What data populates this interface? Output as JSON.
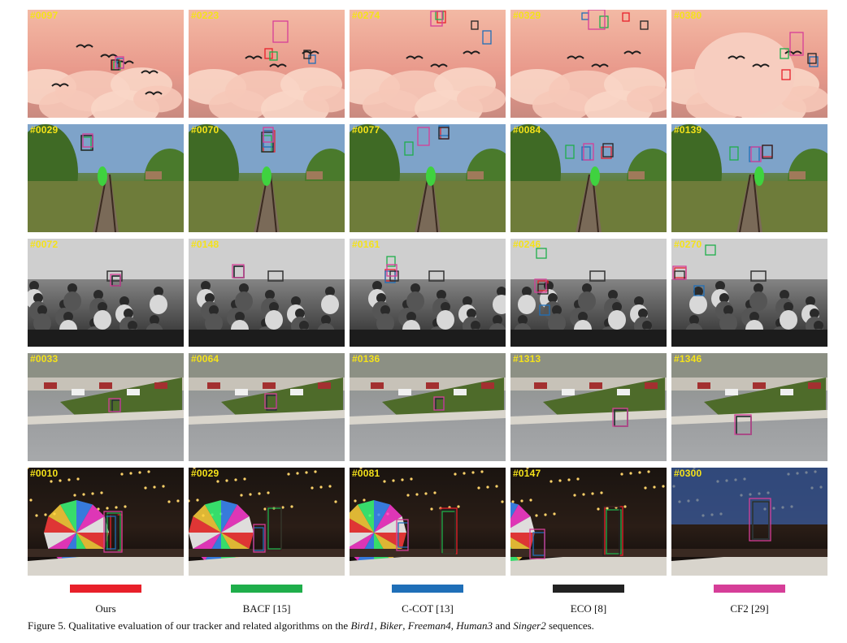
{
  "rows": [
    {
      "sequence": "Bird1",
      "frames": [
        "#0097",
        "#0223",
        "#0274",
        "#0329",
        "#0380"
      ]
    },
    {
      "sequence": "Biker",
      "frames": [
        "#0029",
        "#0070",
        "#0077",
        "#0084",
        "#0139"
      ]
    },
    {
      "sequence": "Freeman4",
      "frames": [
        "#0072",
        "#0148",
        "#0161",
        "#0246",
        "#0270"
      ]
    },
    {
      "sequence": "Human3",
      "frames": [
        "#0033",
        "#0064",
        "#0136",
        "#1313",
        "#1346"
      ]
    },
    {
      "sequence": "Singer2",
      "frames": [
        "#0010",
        "#0029",
        "#0081",
        "#0147",
        "#0300"
      ]
    }
  ],
  "legend": [
    {
      "label": "Ours",
      "color": "#e8202a"
    },
    {
      "label": "BACF [15]",
      "color": "#1fae4b"
    },
    {
      "label": "C-COT [13]",
      "color": "#1f6fb8"
    },
    {
      "label": "ECO [8]",
      "color": "#222222"
    },
    {
      "label": "CF2 [29]",
      "color": "#d63e98"
    }
  ],
  "caption": {
    "prefix": "Figure 5. Qualitative evaluation of our tracker and related algorithms on the ",
    "seq1": "Bird1",
    "sep1": ", ",
    "seq2": "Biker",
    "sep2": ", ",
    "seq3": "Freeman4",
    "sep3": ", ",
    "seq4": "Human3",
    "sep4": " and ",
    "seq5": "Singer2",
    "suffix": " sequences."
  }
}
